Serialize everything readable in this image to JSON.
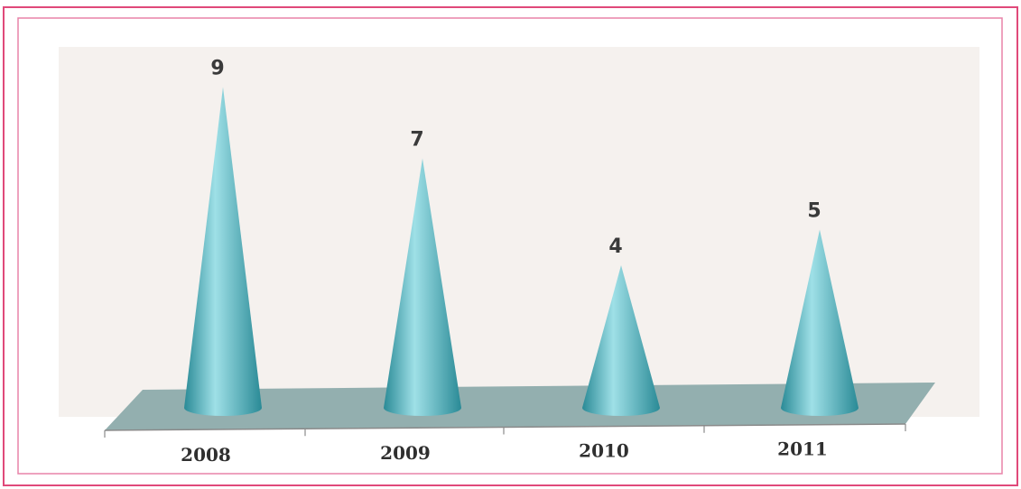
{
  "chart_data": {
    "type": "bar",
    "bar_shape": "cone",
    "three_d": true,
    "categories": [
      "2008",
      "2009",
      "2010",
      "2011"
    ],
    "values": [
      9,
      7,
      4,
      5
    ],
    "title": "",
    "xlabel": "",
    "ylabel": "",
    "ylim": [
      0,
      9
    ],
    "grid": false,
    "legend": "none",
    "data_labels": true,
    "colors": {
      "cone": "#55c0cc",
      "cone_dark": "#2a8a96",
      "cone_light": "#9fe0e7",
      "floor": "#93afaf",
      "plot_background": "#f5f1ee",
      "frame_outer": "#e0497a",
      "frame_inner": "#e883a8"
    }
  }
}
